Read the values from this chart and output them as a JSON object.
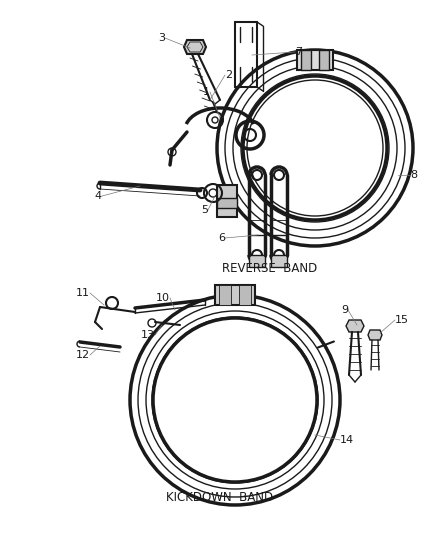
{
  "bg_color": "#ffffff",
  "line_color": "#1a1a1a",
  "text_color": "#1a1a1a",
  "reverse_band_label": "REVERSE  BAND",
  "kickdown_band_label": "KICKDOWN  BAND",
  "font_size_label": 8.5,
  "font_size_number": 8,
  "figsize": [
    4.39,
    5.33
  ],
  "dpi": 100
}
